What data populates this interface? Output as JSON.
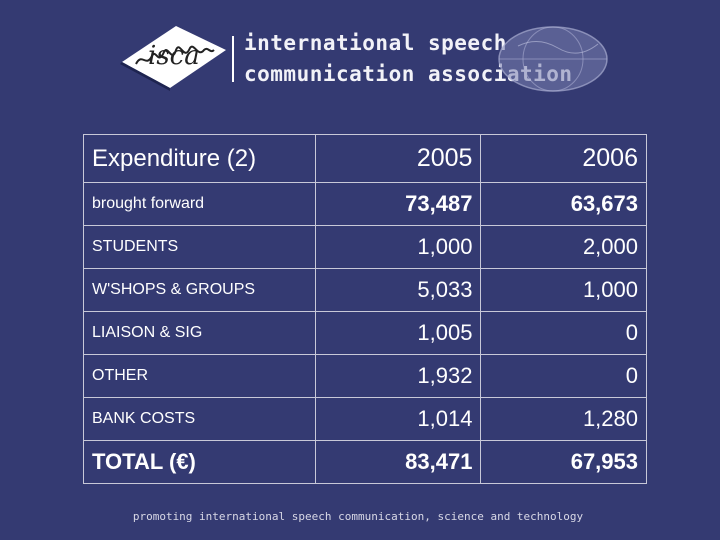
{
  "header": {
    "org_line1": "international speech",
    "org_line2": "communication association",
    "logo_text": "isca"
  },
  "table": {
    "title": "Expenditure (2)",
    "columns": [
      "2005",
      "2006"
    ],
    "rows": [
      {
        "label": "brought forward",
        "v2005": "73,487",
        "v2006": "63,673"
      },
      {
        "label": "STUDENTS",
        "v2005": "1,000",
        "v2006": "2,000"
      },
      {
        "label": "W'SHOPS & GROUPS",
        "v2005": "5,033",
        "v2006": "1,000"
      },
      {
        "label": "LIAISON & SIG",
        "v2005": "1,005",
        "v2006": "0"
      },
      {
        "label": "OTHER",
        "v2005": "1,932",
        "v2006": "0"
      },
      {
        "label": "BANK COSTS",
        "v2005": "1,014",
        "v2006": "1,280"
      }
    ],
    "total": {
      "label": "TOTAL (€)",
      "v2005": "83,471",
      "v2006": "67,953"
    }
  },
  "footer": {
    "tagline": "promoting international speech communication, science and technology"
  },
  "colors": {
    "background": "#343a72",
    "text": "#ffffff",
    "border": "#c8c8d8"
  }
}
